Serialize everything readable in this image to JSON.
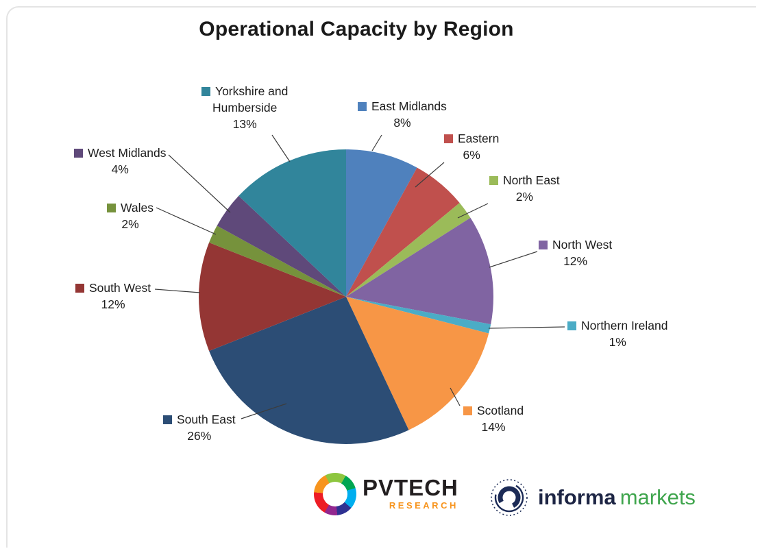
{
  "title": "Operational Capacity by Region",
  "chart_data": {
    "type": "pie",
    "title": "Operational Capacity by Region",
    "direction": "clockwise",
    "start_angle_deg": 0,
    "total": 100,
    "value_suffix": "%",
    "legend_position": "callout-labels-around-pie",
    "slices": [
      {
        "label": "East Midlands",
        "value": 8,
        "color": "#4F81BD"
      },
      {
        "label": "Eastern",
        "value": 6,
        "color": "#C0504D"
      },
      {
        "label": "North East",
        "value": 2,
        "color": "#9BBB59"
      },
      {
        "label": "North West",
        "value": 12,
        "color": "#8064A2"
      },
      {
        "label": "Northern Ireland",
        "value": 1,
        "color": "#4BACC6"
      },
      {
        "label": "Scotland",
        "value": 14,
        "color": "#F79646"
      },
      {
        "label": "South East",
        "value": 26,
        "color": "#2C4D75"
      },
      {
        "label": "South West",
        "value": 12,
        "color": "#943634"
      },
      {
        "label": "Wales",
        "value": 2,
        "color": "#76923C"
      },
      {
        "label": "West Midlands",
        "value": 4,
        "color": "#5F497A"
      },
      {
        "label": "Yorkshire and Humberside",
        "value": 13,
        "color": "#31859B"
      }
    ]
  },
  "footer": {
    "pvtech_label": "PVTECH",
    "pvtech_sub": "RESEARCH",
    "informa_label": "informa",
    "informa_label2": "markets"
  }
}
